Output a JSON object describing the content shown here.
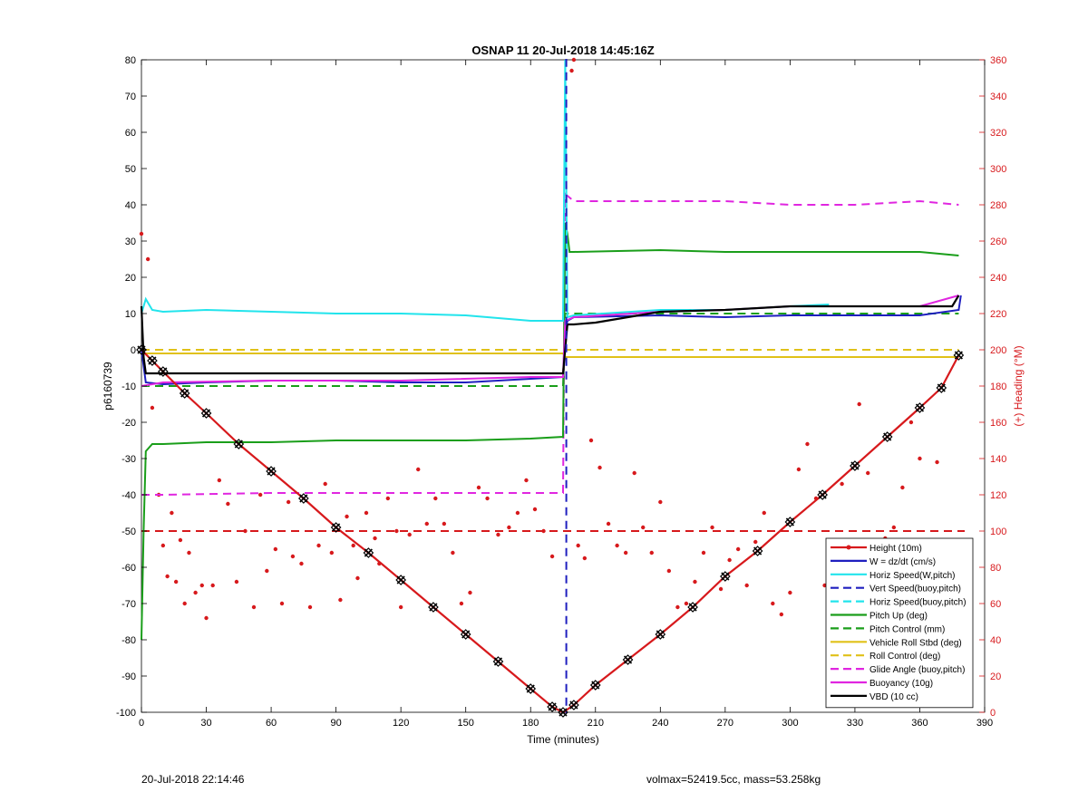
{
  "chart_data": {
    "type": "line",
    "title": "OSNAP 11 20-Jul-2018 14:45:16Z",
    "xlabel": "Time (minutes)",
    "ylabel_left": "p6160739",
    "ylabel_right": "(+) Heading (°M)",
    "xlim": [
      0,
      390
    ],
    "ylim_left": [
      -100,
      80
    ],
    "ylim_right": [
      0,
      360
    ],
    "xticks": [
      "0",
      "30",
      "60",
      "90",
      "120",
      "150",
      "180",
      "210",
      "240",
      "270",
      "300",
      "330",
      "360",
      "390"
    ],
    "yticks_left": [
      "-100",
      "-90",
      "-80",
      "-70",
      "-60",
      "-50",
      "-40",
      "-30",
      "-20",
      "-10",
      "0",
      "10",
      "20",
      "30",
      "40",
      "50",
      "60",
      "70",
      "80"
    ],
    "yticks_right": [
      "0",
      "20",
      "40",
      "60",
      "80",
      "100",
      "120",
      "140",
      "160",
      "180",
      "200",
      "220",
      "240",
      "260",
      "280",
      "300",
      "320",
      "340",
      "360"
    ],
    "grid": false,
    "legend_position": "bottom-right",
    "legend": [
      {
        "label": "Height (10m)",
        "color": "#d7191c",
        "style": "solid",
        "marker": true
      },
      {
        "label": "W = dz/dt (cm/s)",
        "color": "#1f1fbf",
        "style": "solid"
      },
      {
        "label": "Horiz Speed(W,pitch)",
        "color": "#22e4ec",
        "style": "solid"
      },
      {
        "label": "Vert Speed(buoy,pitch)",
        "color": "#1f1fbf",
        "style": "dashed"
      },
      {
        "label": "Horiz Speed(buoy,pitch)",
        "color": "#22e4ec",
        "style": "dashed"
      },
      {
        "label": "Pitch Up (deg)",
        "color": "#1a9e1a",
        "style": "solid"
      },
      {
        "label": "Pitch Control (mm)",
        "color": "#1a9e1a",
        "style": "dashed"
      },
      {
        "label": "Vehicle Roll Stbd (deg)",
        "color": "#e0c118",
        "style": "solid"
      },
      {
        "label": "Roll Control (deg)",
        "color": "#e0c118",
        "style": "dashed"
      },
      {
        "label": "Glide Angle (buoy,pitch)",
        "color": "#e026e0",
        "style": "dashed"
      },
      {
        "label": "Buoyancy (10g)",
        "color": "#e026e0",
        "style": "solid"
      },
      {
        "label": "VBD (10 cc)",
        "color": "#000000",
        "style": "solid"
      }
    ],
    "series": [
      {
        "name": "Height (10m)",
        "x": [
          0,
          5,
          10,
          20,
          30,
          45,
          60,
          75,
          90,
          105,
          120,
          135,
          150,
          165,
          180,
          190,
          195,
          200,
          210,
          225,
          240,
          255,
          270,
          285,
          300,
          315,
          330,
          345,
          360,
          370,
          378
        ],
        "y": [
          0,
          -3,
          -6,
          -12,
          -17.5,
          -26,
          -33.5,
          -41,
          -49,
          -56,
          -63.5,
          -71,
          -78.5,
          -86,
          -93.5,
          -98.5,
          -100,
          -98,
          -92.5,
          -85.5,
          -78.5,
          -71,
          -62.5,
          -55.5,
          -47.5,
          -40,
          -32,
          -24,
          -16,
          -10.5,
          -1.5
        ]
      },
      {
        "name": "W = dz/dt (cm/s)",
        "x": [
          0,
          2,
          10,
          30,
          60,
          90,
          120,
          150,
          180,
          195,
          196,
          197,
          200,
          240,
          270,
          300,
          330,
          360,
          378,
          379
        ],
        "y": [
          0,
          -9,
          -9.5,
          -9,
          -8.5,
          -8.5,
          -9,
          -9,
          -8,
          -7.5,
          5,
          8,
          9,
          9.5,
          9,
          9.5,
          9.5,
          9.5,
          11,
          15
        ]
      },
      {
        "name": "Horiz Speed(W,pitch)",
        "x": [
          0,
          2,
          5,
          10,
          30,
          60,
          90,
          120,
          150,
          180,
          195,
          196,
          197,
          200,
          240,
          270,
          300,
          318
        ],
        "y": [
          10,
          14,
          11,
          10.5,
          11,
          10.5,
          10,
          10,
          9.5,
          8,
          8,
          80,
          9,
          9.5,
          11,
          11,
          12,
          12.5
        ]
      },
      {
        "name": "Vert Speed(buoy,pitch)",
        "x": [
          196,
          196.5,
          196.5,
          197
        ],
        "y": [
          80,
          80,
          -100,
          -100
        ]
      },
      {
        "name": "Pitch Up (deg)",
        "x": [
          0,
          1,
          2,
          5,
          10,
          30,
          60,
          90,
          120,
          150,
          180,
          195,
          196,
          197,
          198,
          200,
          240,
          270,
          300,
          330,
          360,
          378
        ],
        "y": [
          -80,
          -50,
          -28,
          -26,
          -26,
          -25.5,
          -25.5,
          -25,
          -25,
          -25,
          -24.5,
          -24,
          35,
          32,
          27,
          27,
          27.5,
          27,
          27,
          27,
          27,
          26
        ]
      },
      {
        "name": "Pitch Control (mm)",
        "x": [
          0,
          195,
          196,
          378
        ],
        "y": [
          -10,
          -10,
          10,
          10
        ]
      },
      {
        "name": "Vehicle Roll Stbd (deg)",
        "x": [
          0,
          195,
          196,
          378
        ],
        "y": [
          -1,
          -1,
          -2,
          -2
        ]
      },
      {
        "name": "Roll Control (deg)",
        "x": [
          0,
          195,
          196,
          378
        ],
        "y": [
          0,
          0,
          0,
          0
        ]
      },
      {
        "name": "Glide Angle (buoy,pitch)",
        "x": [
          0,
          10,
          60,
          120,
          180,
          195,
          196,
          200,
          210,
          240,
          270,
          300,
          330,
          360,
          378
        ],
        "y": [
          -40,
          -40,
          -39.5,
          -39.5,
          -39.5,
          -39.5,
          43,
          41,
          41,
          41,
          41,
          40,
          40,
          41,
          40
        ]
      },
      {
        "name": "Buoyancy (10g)",
        "x": [
          0,
          10,
          60,
          120,
          180,
          195,
          196,
          200,
          240,
          270,
          300,
          330,
          360,
          378
        ],
        "y": [
          -10,
          -9,
          -8.5,
          -8.5,
          -7.5,
          -7.5,
          8,
          9,
          10.5,
          11,
          12,
          12,
          12,
          15
        ]
      },
      {
        "name": "VBD (10 cc)",
        "x": [
          0,
          1,
          2,
          10,
          60,
          120,
          180,
          195,
          197,
          200,
          210,
          220,
          240,
          270,
          300,
          330,
          360,
          375,
          378
        ],
        "y": [
          12,
          -2,
          -6.5,
          -6.5,
          -6.5,
          -6.5,
          -6.5,
          -6.5,
          7,
          7,
          7.5,
          8.5,
          10.5,
          11,
          12,
          12,
          12,
          12,
          15
        ]
      },
      {
        "name": "heading",
        "axis": "right",
        "markers_only": true,
        "x": [
          0,
          3,
          5,
          8,
          10,
          12,
          14,
          16,
          18,
          20,
          22,
          25,
          28,
          30,
          33,
          36,
          40,
          44,
          48,
          52,
          55,
          58,
          62,
          65,
          68,
          70,
          74,
          78,
          82,
          85,
          88,
          92,
          95,
          98,
          100,
          104,
          108,
          110,
          114,
          118,
          120,
          124,
          128,
          132,
          136,
          140,
          144,
          148,
          152,
          156,
          160,
          165,
          170,
          174,
          178,
          182,
          186,
          190,
          199,
          200,
          202,
          205,
          208,
          212,
          216,
          220,
          224,
          228,
          232,
          236,
          240,
          244,
          248,
          252,
          256,
          260,
          264,
          268,
          272,
          276,
          280,
          284,
          288,
          292,
          296,
          300,
          304,
          308,
          312,
          316,
          320,
          324,
          328,
          332,
          336,
          340,
          344,
          348,
          352,
          356,
          360,
          364,
          368,
          372,
          376
        ],
        "y": [
          264,
          250,
          168,
          120,
          92,
          75,
          110,
          72,
          95,
          60,
          88,
          66,
          70,
          52,
          70,
          128,
          115,
          72,
          100,
          58,
          120,
          78,
          90,
          60,
          116,
          86,
          82,
          58,
          92,
          126,
          88,
          62,
          108,
          92,
          74,
          110,
          96,
          82,
          118,
          100,
          58,
          98,
          134,
          104,
          118,
          104,
          88,
          60,
          66,
          124,
          118,
          98,
          102,
          110,
          128,
          112,
          100,
          86,
          354,
          360,
          92,
          85,
          150,
          135,
          104,
          92,
          88,
          132,
          102,
          88,
          116,
          78,
          58,
          60,
          72,
          88,
          102,
          68,
          84,
          90,
          70,
          94,
          110,
          60,
          54,
          66,
          134,
          148,
          118,
          70,
          60,
          126,
          88,
          170,
          132,
          66,
          96,
          102,
          124,
          160,
          140,
          54,
          138,
          44,
          56
        ]
      }
    ]
  },
  "footer": {
    "timestamp": "20-Jul-2018 22:14:46",
    "mass_info": "volmax=52419.5cc, mass=53.258kg"
  }
}
